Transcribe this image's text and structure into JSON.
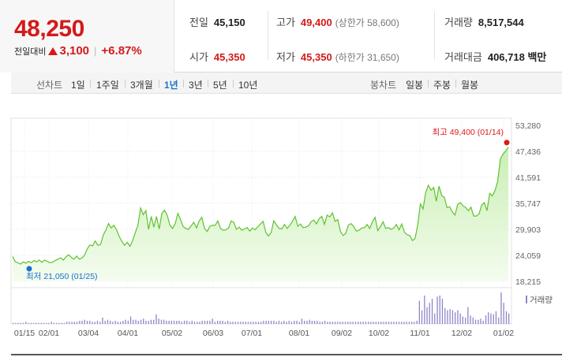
{
  "summary": {
    "price": "48,250",
    "change_label": "전일대비",
    "change_amount": "3,100",
    "separator": "|",
    "change_pct": "+6.87%",
    "stats": {
      "prev_close": {
        "label": "전일",
        "value": "45,150"
      },
      "high": {
        "label": "고가",
        "value": "49,400",
        "sub": "(상한가 58,600)"
      },
      "volume": {
        "label": "거래량",
        "value": "8,517,544"
      },
      "open": {
        "label": "시가",
        "value": "45,350"
      },
      "low": {
        "label": "저가",
        "value": "45,350",
        "sub": "(하한가 31,650)"
      },
      "trade_value": {
        "label": "거래대금",
        "value": "406,718 백만"
      }
    },
    "colors": {
      "up": "#d41a1a",
      "active": "#1a73c9"
    }
  },
  "toolbar": {
    "line_chart_title": "선차트",
    "line_periods": [
      "1일",
      "1주일",
      "3개월",
      "1년",
      "3년",
      "5년",
      "10년"
    ],
    "active_period": "1년",
    "candle_chart_title": "봉차트",
    "candle_periods": [
      "일봉",
      "주봉",
      "월봉"
    ]
  },
  "chart_data": {
    "type": "area",
    "title": "",
    "y_ticks": [
      "53,280",
      "47,436",
      "41,591",
      "35,747",
      "29,903",
      "24,059",
      "18,215"
    ],
    "ylim": [
      18215,
      53280
    ],
    "x_ticks": [
      "01/15",
      "02/01",
      "03/04",
      "04/01",
      "05/02",
      "06/03",
      "07/01",
      "08/01",
      "09/02",
      "10/02",
      "11/01",
      "12/02",
      "01/02"
    ],
    "high_annotation": "최고 49,400 (01/14)",
    "low_annotation": "최저 21,050 (01/25)",
    "volume_legend": "거래량",
    "line_color": "#5fc230",
    "fill_color": "#c9efb3",
    "series": [
      {
        "values": [
          23800,
          22600,
          22400,
          22100,
          22600,
          22300,
          22700,
          22400,
          22900,
          22600,
          23000,
          22500,
          23000,
          22700,
          22400,
          22500,
          22900,
          23200,
          23500,
          23000,
          23700,
          24200,
          23600,
          23200,
          23900,
          23200,
          23500,
          24100,
          25500,
          26400,
          26200,
          27300,
          26300,
          26500,
          28600,
          29800,
          31200,
          30200,
          30800,
          29800,
          28300,
          27200,
          26300,
          27000,
          26100,
          27300,
          29100,
          30800,
          34700,
          33200,
          34100,
          29900,
          32800,
          30400,
          32800,
          30000,
          33500,
          34200,
          33100,
          30900,
          30100,
          31200,
          33500,
          32100,
          30500,
          30100,
          29900,
          30700,
          31500,
          30200,
          31800,
          32600,
          30100,
          29400,
          30600,
          30800,
          30800,
          31800,
          30100,
          29700,
          29800,
          30200,
          31800,
          31500,
          29900,
          30400,
          29700,
          30000,
          30300,
          29500,
          30200,
          29800,
          30500,
          31100,
          31700,
          29200,
          28400,
          29200,
          31800,
          30900,
          30100,
          30000,
          31000,
          30100,
          30800,
          31700,
          32800,
          30600,
          31100,
          30300,
          30400,
          30700,
          31600,
          32000,
          31100,
          32300,
          32800,
          31000,
          33100,
          32700,
          33600,
          31700,
          32100,
          29400,
          28500,
          29000,
          30900,
          31200,
          30500,
          29500,
          29700,
          30200,
          30300,
          31000,
          30100,
          31600,
          32600,
          29600,
          30500,
          31600,
          30100,
          30300,
          29900,
          30200,
          31000,
          29800,
          31100,
          29300,
          28700,
          28500,
          27400,
          27800,
          30900,
          35600,
          34500,
          38200,
          39800,
          38700,
          39300,
          36200,
          39600,
          37500,
          37100,
          34800,
          35000,
          33800,
          33100,
          35500,
          35900,
          35200,
          34800,
          34100,
          34900,
          32900,
          32900,
          33400,
          35300,
          35900,
          34100,
          38000,
          37400,
          38600,
          40700,
          45700,
          46800,
          47500,
          48400
        ]
      }
    ],
    "volume": [
      1,
      1,
      1,
      1,
      1,
      2,
      1,
      1,
      1,
      1,
      1,
      1,
      1,
      1,
      1,
      2,
      1,
      1,
      1,
      1,
      1,
      2,
      2,
      2,
      2,
      2,
      3,
      3,
      4,
      3,
      3,
      2,
      2,
      3,
      2,
      6,
      3,
      4,
      3,
      2,
      3,
      2,
      2,
      3,
      4,
      3,
      7,
      4,
      4,
      3,
      4,
      5,
      3,
      3,
      4,
      4,
      9,
      5,
      4,
      4,
      3,
      3,
      3,
      3,
      3,
      3,
      2,
      3,
      3,
      2,
      3,
      2,
      2,
      2,
      3,
      3,
      3,
      3,
      5,
      2,
      3,
      3,
      3,
      2,
      3,
      2,
      2,
      2,
      2,
      2,
      2,
      2,
      2,
      2,
      2,
      2,
      2,
      2,
      3,
      3,
      3,
      3,
      3,
      2,
      3,
      2,
      3,
      2,
      3,
      2,
      3,
      3,
      2,
      5,
      3,
      3,
      4,
      3,
      3,
      3,
      2,
      2,
      3,
      2,
      2,
      2,
      2,
      2,
      2,
      2,
      2,
      2,
      2,
      2,
      2,
      2,
      2,
      2,
      2,
      2,
      2,
      2,
      2,
      2,
      2,
      2,
      2,
      2,
      2,
      2,
      2,
      2,
      2,
      2,
      2,
      2,
      2,
      2,
      3,
      22,
      13,
      27,
      16,
      20,
      24,
      10,
      26,
      27,
      24,
      15,
      13,
      14,
      13,
      11,
      13,
      10,
      7,
      6,
      16,
      8,
      6,
      4,
      4,
      5,
      3,
      8,
      11,
      10,
      9,
      12,
      6,
      30,
      20,
      12,
      10
    ]
  }
}
